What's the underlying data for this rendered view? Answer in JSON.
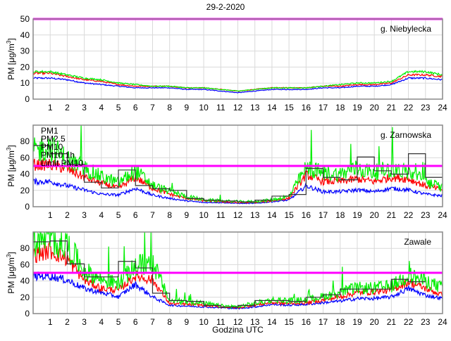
{
  "title": "29-2-2020",
  "xlabel": "Godzina UTC",
  "ylabel_prefix": "PM [μg/m",
  "ylabel_sup": "3",
  "ylabel_suffix": "]",
  "colors": {
    "PM1": "#0000ff",
    "PM2.5": "#ff0000",
    "PM10": "#00ee00",
    "PM10 1h": "#000000",
    "Limit PM10": "#ff00ff"
  },
  "chart_data": [
    {
      "type": "line",
      "title": "g. Niebylecka",
      "xlim": [
        0,
        24
      ],
      "ylim": [
        0,
        50
      ],
      "xticks": [
        1,
        2,
        3,
        4,
        5,
        6,
        7,
        8,
        9,
        10,
        11,
        12,
        13,
        14,
        15,
        16,
        17,
        18,
        19,
        20,
        21,
        22,
        23,
        24
      ],
      "yticks": [
        0,
        10,
        20,
        30,
        40,
        50
      ],
      "x_hours": [
        0,
        1,
        2,
        3,
        4,
        5,
        6,
        7,
        8,
        9,
        10,
        11,
        12,
        13,
        14,
        15,
        16,
        17,
        18,
        19,
        20,
        21,
        22,
        23,
        24
      ],
      "series": [
        {
          "name": "PM1",
          "values": [
            13,
            13,
            12,
            10,
            9,
            8,
            7,
            7,
            7,
            6,
            6,
            5,
            4,
            5,
            6,
            6,
            6,
            7,
            7,
            8,
            8,
            9,
            13,
            13,
            12
          ]
        },
        {
          "name": "PM2.5",
          "values": [
            16,
            16,
            14,
            12,
            11,
            9,
            8,
            8,
            8,
            7,
            7,
            6,
            5,
            6,
            7,
            7,
            7,
            8,
            8,
            9,
            9,
            10,
            15,
            15,
            14
          ]
        },
        {
          "name": "PM10",
          "values": [
            17,
            17,
            15,
            13,
            12,
            10,
            9,
            8,
            8,
            7,
            7,
            6,
            5,
            6,
            7,
            7,
            7,
            8,
            9,
            10,
            10,
            11,
            17,
            17,
            15
          ]
        }
      ],
      "pm10_1h": [],
      "limit_pm10": 50,
      "legend": []
    },
    {
      "type": "line",
      "title": "g. Zarnowska",
      "xlim": [
        0,
        24
      ],
      "ylim": [
        0,
        100
      ],
      "xticks": [
        1,
        2,
        3,
        4,
        5,
        6,
        7,
        8,
        9,
        10,
        11,
        12,
        13,
        14,
        15,
        16,
        17,
        18,
        19,
        20,
        21,
        22,
        23,
        24
      ],
      "yticks": [
        0,
        20,
        40,
        60,
        80
      ],
      "x_hours": [
        0,
        1,
        2,
        3,
        4,
        5,
        6,
        7,
        8,
        9,
        10,
        11,
        12,
        13,
        14,
        15,
        16,
        17,
        18,
        19,
        20,
        21,
        22,
        23,
        24
      ],
      "series": [
        {
          "name": "PM1",
          "values": [
            30,
            30,
            25,
            20,
            15,
            14,
            22,
            14,
            10,
            7,
            5,
            5,
            4,
            4,
            6,
            8,
            25,
            18,
            18,
            20,
            18,
            22,
            20,
            15,
            13
          ]
        },
        {
          "name": "PM2.5",
          "values": [
            50,
            50,
            45,
            35,
            28,
            22,
            35,
            22,
            15,
            10,
            7,
            6,
            5,
            5,
            7,
            10,
            38,
            30,
            30,
            33,
            30,
            35,
            33,
            25,
            20
          ]
        },
        {
          "name": "PM10",
          "values": [
            65,
            70,
            55,
            45,
            35,
            28,
            42,
            25,
            18,
            12,
            8,
            7,
            6,
            6,
            8,
            12,
            45,
            40,
            38,
            45,
            40,
            45,
            40,
            30,
            22
          ]
        }
      ],
      "pm10_1h": [
        75,
        65,
        52,
        30,
        23,
        45,
        26,
        22,
        20,
        10,
        8,
        7,
        6,
        8,
        13,
        15,
        47,
        36,
        33,
        61,
        44,
        40,
        65,
        36
      ],
      "limit_pm10": 50,
      "legend": [
        "PM1",
        "PM2.5",
        "PM10",
        "PM10 1h",
        "Limit PM10"
      ]
    },
    {
      "type": "line",
      "title": "Zawale",
      "xlim": [
        0,
        24
      ],
      "ylim": [
        0,
        100
      ],
      "xticks": [
        1,
        2,
        3,
        4,
        5,
        6,
        7,
        8,
        9,
        10,
        11,
        12,
        13,
        14,
        15,
        16,
        17,
        18,
        19,
        20,
        21,
        22,
        23,
        24
      ],
      "yticks": [
        0,
        20,
        40,
        60,
        80
      ],
      "x_hours": [
        0,
        1,
        2,
        3,
        4,
        5,
        6,
        7,
        8,
        9,
        10,
        11,
        12,
        13,
        14,
        15,
        16,
        17,
        18,
        19,
        20,
        21,
        22,
        23,
        24
      ],
      "series": [
        {
          "name": "PM1",
          "values": [
            45,
            45,
            40,
            30,
            25,
            20,
            35,
            20,
            10,
            9,
            8,
            7,
            6,
            8,
            11,
            10,
            11,
            13,
            15,
            18,
            18,
            20,
            30,
            22,
            18
          ]
        },
        {
          "name": "PM2.5",
          "values": [
            70,
            75,
            65,
            40,
            30,
            28,
            45,
            40,
            12,
            11,
            10,
            8,
            7,
            10,
            13,
            12,
            13,
            16,
            20,
            25,
            26,
            28,
            38,
            30,
            22
          ]
        },
        {
          "name": "PM10",
          "values": [
            85,
            88,
            80,
            50,
            40,
            35,
            55,
            60,
            15,
            14,
            12,
            9,
            8,
            12,
            16,
            15,
            16,
            20,
            25,
            30,
            30,
            32,
            45,
            38,
            30
          ]
        }
      ],
      "pm10_1h": [
        88,
        89,
        61,
        45,
        45,
        64,
        56,
        25,
        16,
        15,
        10,
        8,
        10,
        16,
        16,
        15,
        20,
        23,
        30,
        30,
        30,
        42,
        39
      ],
      "limit_pm10": 50,
      "legend": []
    }
  ]
}
